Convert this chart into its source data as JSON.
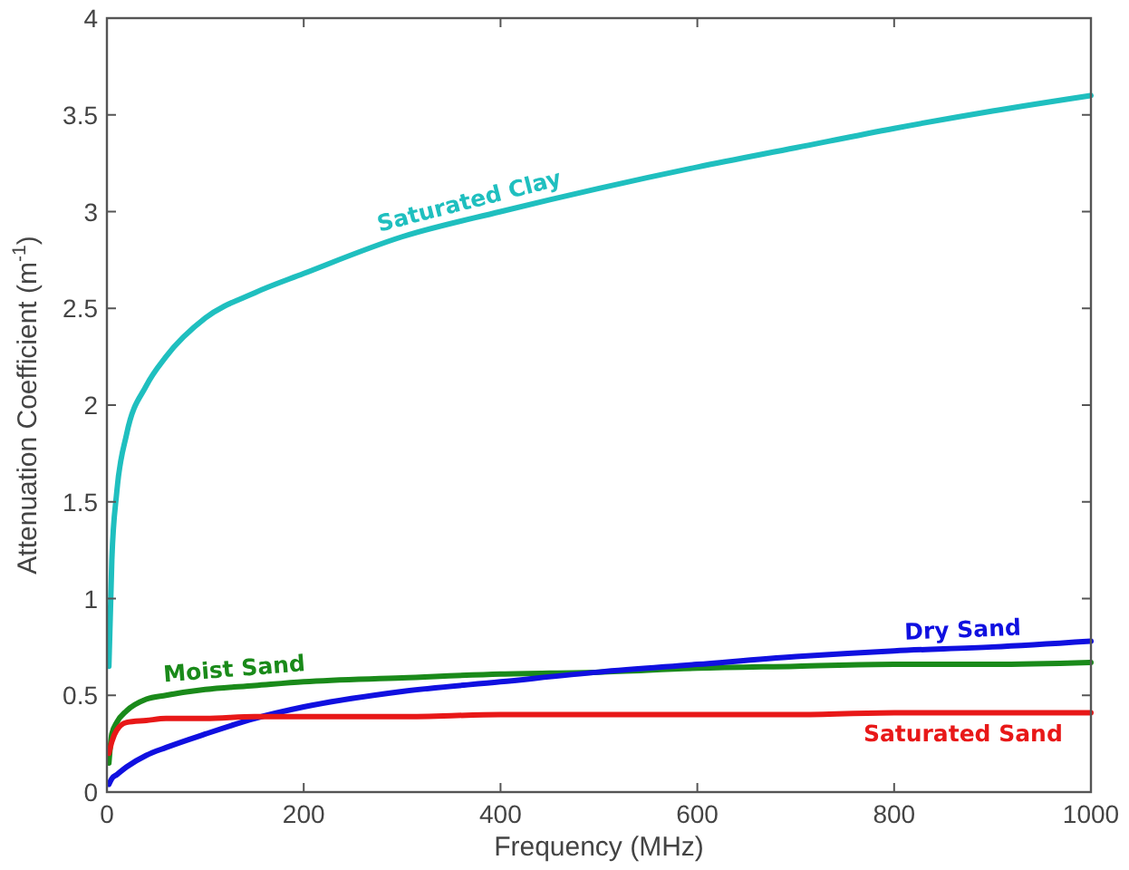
{
  "chart_data": {
    "type": "line",
    "xlabel": "Frequency (MHz)",
    "ylabel": "Attenuation Coefficient (m$^{-1}$)",
    "xlim": [
      0,
      1000
    ],
    "xticks": [
      0,
      200,
      400,
      600,
      800,
      1000
    ],
    "ylim": [
      0,
      4
    ],
    "yticks": [
      0,
      0.5,
      1,
      1.5,
      2,
      2.5,
      3,
      3.5,
      4
    ],
    "grid": false,
    "marker": "none",
    "line_style": "solid",
    "x": [
      2,
      5,
      10,
      20,
      40,
      60,
      100,
      150,
      200,
      300,
      400,
      500,
      600,
      700,
      800,
      900,
      1000
    ],
    "series": [
      {
        "name": "Saturated Clay",
        "color": "#1fbfbf",
        "values": [
          0.65,
          1.2,
          1.55,
          1.85,
          2.1,
          2.25,
          2.45,
          2.58,
          2.68,
          2.87,
          3.0,
          3.12,
          3.23,
          3.33,
          3.43,
          3.52,
          3.6
        ]
      },
      {
        "name": "Moist Sand",
        "color": "#1a8a1a",
        "values": [
          0.15,
          0.3,
          0.36,
          0.42,
          0.48,
          0.5,
          0.53,
          0.55,
          0.57,
          0.59,
          0.61,
          0.62,
          0.64,
          0.65,
          0.66,
          0.66,
          0.67
        ]
      },
      {
        "name": "Dry Sand",
        "color": "#1010e0",
        "values": [
          0.04,
          0.07,
          0.09,
          0.13,
          0.19,
          0.23,
          0.3,
          0.38,
          0.44,
          0.52,
          0.57,
          0.62,
          0.66,
          0.7,
          0.73,
          0.75,
          0.78
        ]
      },
      {
        "name": "Saturated Sand",
        "color": "#e81818",
        "values": [
          0.2,
          0.26,
          0.32,
          0.36,
          0.37,
          0.38,
          0.38,
          0.39,
          0.39,
          0.39,
          0.4,
          0.4,
          0.4,
          0.4,
          0.41,
          0.41,
          0.41
        ]
      }
    ]
  }
}
